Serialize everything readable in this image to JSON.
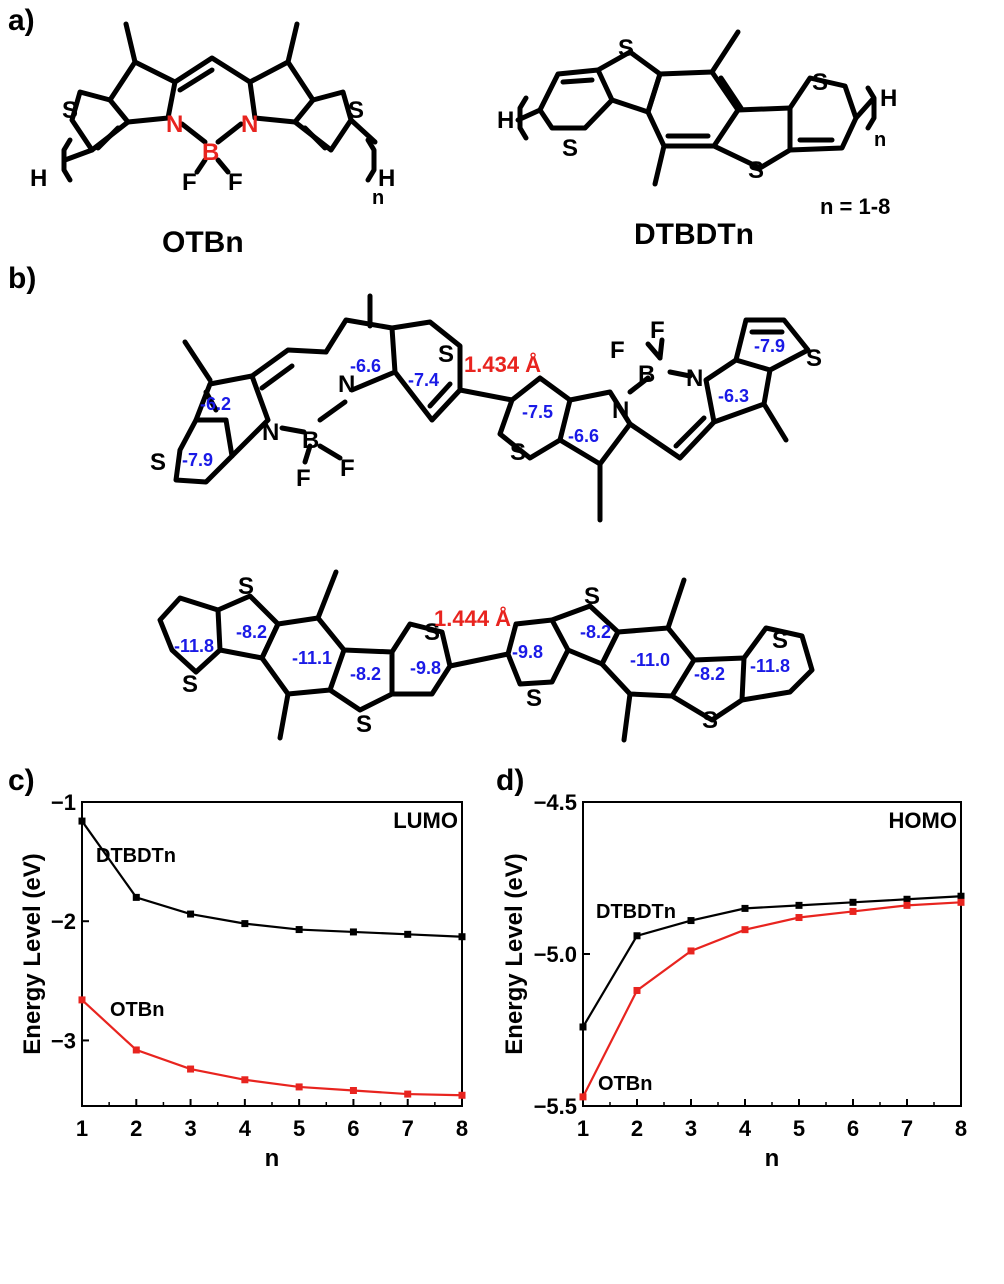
{
  "panels": {
    "a": "a)",
    "b": "b)",
    "c": "c)",
    "d": "d)"
  },
  "panel_a": {
    "mol1_name": "OTBn",
    "mol2_name": "DTBDTn",
    "n_range": "n = 1-8",
    "end_h": "H",
    "subscript_n": "n"
  },
  "panel_b": {
    "otb_dimer": {
      "bond_length": "1.434 Å",
      "nics_values": [
        "-6.2",
        "-7.9",
        "-6.6",
        "-7.4",
        "-7.5",
        "-6.6",
        "-7.9",
        "-6.3"
      ]
    },
    "dtbdt_dimer": {
      "bond_length": "1.444 Å",
      "nics_values": [
        "-11.8",
        "-8.2",
        "-11.1",
        "-8.2",
        "-9.8",
        "-9.8",
        "-8.2",
        "-11.0",
        "-8.2",
        "-11.8"
      ]
    }
  },
  "colors": {
    "otbn": "#e8241f",
    "dtbdtn": "#000000",
    "nics": "#1a1ae6",
    "bond": "#e8241f"
  },
  "chart_data": [
    {
      "type": "line",
      "panel": "c",
      "title": "LUMO",
      "xlabel": "n",
      "ylabel": "Energy Level (eV)",
      "xlim": [
        1,
        8
      ],
      "ylim": [
        -3.55,
        -1.0
      ],
      "xticks": [
        1,
        2,
        3,
        4,
        5,
        6,
        7,
        8
      ],
      "yticks": [
        -1,
        -2,
        -3
      ],
      "ytick_labels": [
        "−1",
        "−2",
        "−3"
      ],
      "series": [
        {
          "name": "DTBDTn",
          "color": "#000000",
          "x": [
            1,
            2,
            3,
            4,
            5,
            6,
            7,
            8
          ],
          "values": [
            -1.16,
            -1.8,
            -1.94,
            -2.02,
            -2.07,
            -2.09,
            -2.11,
            -2.13
          ]
        },
        {
          "name": "OTBn",
          "color": "#e8241f",
          "x": [
            1,
            2,
            3,
            4,
            5,
            6,
            7,
            8
          ],
          "values": [
            -2.66,
            -3.08,
            -3.24,
            -3.33,
            -3.39,
            -3.42,
            -3.45,
            -3.46
          ]
        }
      ]
    },
    {
      "type": "line",
      "panel": "d",
      "title": "HOMO",
      "xlabel": "n",
      "ylabel": "Energy Level (eV)",
      "xlim": [
        1,
        8
      ],
      "ylim": [
        -5.5,
        -4.5
      ],
      "xticks": [
        1,
        2,
        3,
        4,
        5,
        6,
        7,
        8
      ],
      "yticks": [
        -4.5,
        -5.0,
        -5.5
      ],
      "ytick_labels": [
        "−4.5",
        "−5.0",
        "−5.5"
      ],
      "series": [
        {
          "name": "DTBDTn",
          "color": "#000000",
          "x": [
            1,
            2,
            3,
            4,
            5,
            6,
            7,
            8
          ],
          "values": [
            -5.24,
            -4.94,
            -4.89,
            -4.85,
            -4.84,
            -4.83,
            -4.82,
            -4.81
          ]
        },
        {
          "name": "OTBn",
          "color": "#e8241f",
          "x": [
            1,
            2,
            3,
            4,
            5,
            6,
            7,
            8
          ],
          "values": [
            -5.47,
            -5.12,
            -4.99,
            -4.92,
            -4.88,
            -4.86,
            -4.84,
            -4.83
          ]
        }
      ]
    }
  ]
}
